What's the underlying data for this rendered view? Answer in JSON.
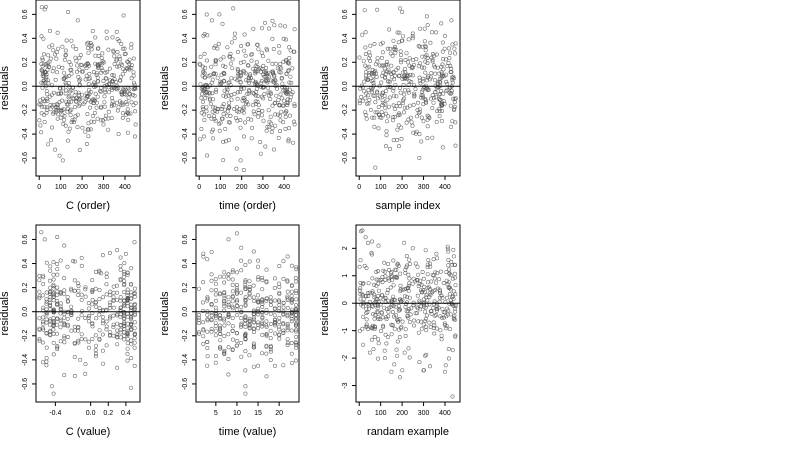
{
  "figure": {
    "layout": "2x3 grid of residual scatter plots",
    "marker": "open circle",
    "marker_color": "#555555",
    "reference_line": "horizontal at y = 0"
  },
  "chart_data": [
    {
      "id": "c-order",
      "type": "scatter",
      "xlabel": "C (order)",
      "ylabel": "residuals",
      "xlim": [
        -15,
        470
      ],
      "ylim": [
        -0.75,
        0.72
      ],
      "xticks": [
        0,
        100,
        200,
        300,
        400
      ],
      "xtick_labels": [
        "0",
        "100",
        "200",
        "300",
        "400"
      ],
      "yticks": [
        -0.6,
        -0.4,
        -0.2,
        0.0,
        0.2,
        0.4,
        0.6
      ],
      "ytick_labels": [
        "-0.6",
        "-0.4",
        "-0.2",
        "0.0",
        "0.2",
        "0.4",
        "0.6"
      ],
      "hline": 0,
      "points": [
        [
          12,
          0.66
        ],
        [
          40,
          0.05
        ],
        [
          65,
          0.3
        ],
        [
          80,
          -0.18
        ],
        [
          95,
          -0.58
        ],
        [
          110,
          -0.62
        ],
        [
          120,
          0.22
        ],
        [
          135,
          0.62
        ],
        [
          150,
          0.38
        ],
        [
          165,
          -0.28
        ],
        [
          180,
          0.55
        ],
        [
          200,
          0.12
        ],
        [
          215,
          -0.38
        ],
        [
          230,
          0.28
        ],
        [
          250,
          0.46
        ],
        [
          260,
          -0.12
        ],
        [
          275,
          0.18
        ],
        [
          300,
          -0.32
        ],
        [
          315,
          0.4
        ],
        [
          330,
          0.05
        ],
        [
          350,
          0.25
        ],
        [
          370,
          -0.4
        ],
        [
          390,
          0.1
        ],
        [
          410,
          -0.22
        ],
        [
          430,
          0.35
        ],
        [
          445,
          -0.08
        ],
        [
          25,
          -0.3
        ],
        [
          55,
          -0.45
        ],
        [
          170,
          -0.05
        ],
        [
          340,
          -0.15
        ]
      ],
      "scatter_cloud": {
        "count": 420,
        "x_range": [
          0,
          450
        ],
        "y_sd": 0.21,
        "seed": 11
      }
    },
    {
      "id": "time-order",
      "type": "scatter",
      "xlabel": "time (order)",
      "ylabel": "residuals",
      "xlim": [
        -15,
        470
      ],
      "ylim": [
        -0.75,
        0.72
      ],
      "xticks": [
        0,
        100,
        200,
        300,
        400
      ],
      "xtick_labels": [
        "0",
        "100",
        "200",
        "300",
        "400"
      ],
      "yticks": [
        -0.6,
        -0.4,
        -0.2,
        0.0,
        0.2,
        0.4,
        0.6
      ],
      "ytick_labels": [
        "-0.6",
        "-0.4",
        "-0.2",
        "0.0",
        "0.2",
        "0.4",
        "0.6"
      ],
      "hline": 0,
      "points": [
        [
          20,
          0.42
        ],
        [
          60,
          0.55
        ],
        [
          95,
          0.6
        ],
        [
          110,
          0.52
        ],
        [
          140,
          -0.45
        ],
        [
          160,
          0.65
        ],
        [
          195,
          -0.62
        ],
        [
          210,
          -0.7
        ],
        [
          230,
          0.35
        ],
        [
          255,
          0.48
        ],
        [
          280,
          -0.2
        ],
        [
          300,
          0.25
        ],
        [
          320,
          0.3
        ],
        [
          345,
          -0.35
        ],
        [
          370,
          0.15
        ],
        [
          395,
          -0.3
        ],
        [
          420,
          0.2
        ],
        [
          440,
          -0.05
        ],
        [
          70,
          -0.25
        ],
        [
          180,
          0.05
        ]
      ],
      "scatter_cloud": {
        "count": 420,
        "x_range": [
          0,
          450
        ],
        "y_sd": 0.21,
        "seed": 23
      }
    },
    {
      "id": "sample-index",
      "type": "scatter",
      "xlabel": "sample index",
      "ylabel": "residuals",
      "xlim": [
        -15,
        470
      ],
      "ylim": [
        -0.75,
        0.72
      ],
      "xticks": [
        0,
        100,
        200,
        300,
        400
      ],
      "xtick_labels": [
        "0",
        "100",
        "200",
        "300",
        "400"
      ],
      "yticks": [
        -0.6,
        -0.4,
        -0.2,
        0.0,
        0.2,
        0.4,
        0.6
      ],
      "ytick_labels": [
        "-0.6",
        "-0.4",
        "-0.2",
        "0.0",
        "0.2",
        "0.4",
        "0.6"
      ],
      "hline": 0,
      "points": [
        [
          30,
          0.45
        ],
        [
          75,
          -0.68
        ],
        [
          100,
          0.35
        ],
        [
          125,
          -0.5
        ],
        [
          160,
          0.38
        ],
        [
          190,
          0.65
        ],
        [
          200,
          0.62
        ],
        [
          250,
          0.4
        ],
        [
          280,
          -0.6
        ],
        [
          310,
          0.3
        ],
        [
          340,
          0.45
        ],
        [
          375,
          -0.25
        ],
        [
          400,
          0.42
        ],
        [
          430,
          0.55
        ],
        [
          450,
          -0.1
        ]
      ],
      "scatter_cloud": {
        "count": 420,
        "x_range": [
          0,
          450
        ],
        "y_sd": 0.21,
        "seed": 37
      }
    },
    {
      "id": "c-value",
      "type": "scatter",
      "xlabel": "C (value)",
      "ylabel": "residuals",
      "xlim": [
        -0.62,
        0.56
      ],
      "ylim": [
        -0.75,
        0.72
      ],
      "xticks": [
        -0.4,
        0.0,
        0.2,
        0.4
      ],
      "xtick_labels": [
        "-0.4",
        "0.0",
        "0.2",
        "0.4"
      ],
      "yticks": [
        -0.6,
        -0.4,
        -0.2,
        0.0,
        0.2,
        0.4,
        0.6
      ],
      "ytick_labels": [
        "-0.6",
        "-0.4",
        "-0.2",
        "0.0",
        "0.2",
        "0.4",
        "0.6"
      ],
      "hline": 0,
      "points": [
        [
          -0.56,
          0.66
        ],
        [
          -0.52,
          0.6
        ],
        [
          -0.44,
          -0.62
        ],
        [
          -0.42,
          -0.68
        ],
        [
          -0.38,
          0.62
        ],
        [
          -0.3,
          0.55
        ],
        [
          -0.2,
          0.42
        ],
        [
          -0.1,
          0.38
        ],
        [
          0.02,
          0.18
        ],
        [
          0.12,
          0.32
        ],
        [
          0.22,
          -0.2
        ],
        [
          0.34,
          0.45
        ],
        [
          0.4,
          0.48
        ],
        [
          0.46,
          0.36
        ],
        [
          0.5,
          -0.45
        ],
        [
          -0.12,
          -0.4
        ],
        [
          0.06,
          -0.35
        ]
      ],
      "scatter_cloud": {
        "count": 400,
        "x_levels": [
          -0.58,
          -0.54,
          -0.5,
          -0.46,
          -0.42,
          -0.38,
          -0.34,
          -0.3,
          -0.26,
          -0.22,
          -0.18,
          -0.14,
          -0.1,
          -0.06,
          -0.02,
          0.02,
          0.06,
          0.1,
          0.14,
          0.18,
          0.22,
          0.26,
          0.3,
          0.34,
          0.38,
          0.42,
          0.46,
          0.5
        ],
        "level_weights": [
          3,
          4,
          5,
          6,
          9,
          5,
          4,
          4,
          3,
          3,
          3,
          3,
          2,
          2,
          2,
          3,
          3,
          3,
          3,
          3,
          3,
          3,
          4,
          5,
          8,
          9,
          8,
          6
        ],
        "y_sd": 0.21,
        "seed": 53
      }
    },
    {
      "id": "time-value",
      "type": "scatter",
      "xlabel": "time (value)",
      "ylabel": "residuals",
      "xlim": [
        0.3,
        24.7
      ],
      "ylim": [
        -0.75,
        0.72
      ],
      "xticks": [
        5,
        10,
        15,
        20
      ],
      "xtick_labels": [
        "5",
        "10",
        "15",
        "20"
      ],
      "yticks": [
        -0.6,
        -0.4,
        -0.2,
        0.0,
        0.2,
        0.4,
        0.6
      ],
      "ytick_labels": [
        "-0.6",
        "-0.4",
        "-0.2",
        "0.0",
        "0.2",
        "0.4",
        "0.6"
      ],
      "hline": 0,
      "points": [
        [
          8,
          0.6
        ],
        [
          10,
          0.65
        ],
        [
          12,
          -0.62
        ],
        [
          12,
          -0.68
        ],
        [
          14,
          0.5
        ],
        [
          17,
          0.35
        ],
        [
          19,
          -0.45
        ],
        [
          21,
          0.42
        ],
        [
          23,
          -0.35
        ],
        [
          24,
          -0.3
        ],
        [
          3,
          0.12
        ]
      ],
      "scatter_cloud": {
        "count": 400,
        "x_levels": [
          1,
          2,
          3,
          4,
          5,
          6,
          7,
          8,
          9,
          10,
          11,
          12,
          13,
          14,
          15,
          16,
          17,
          18,
          19,
          20,
          21,
          22,
          23,
          24
        ],
        "level_weights": [
          2,
          3,
          4,
          4,
          5,
          5,
          6,
          5,
          5,
          5,
          4,
          9,
          5,
          6,
          5,
          5,
          5,
          4,
          4,
          5,
          4,
          5,
          6,
          8
        ],
        "y_sd": 0.21,
        "seed": 71
      }
    },
    {
      "id": "random-example",
      "type": "scatter",
      "xlabel": "randam example",
      "ylabel": "residuals",
      "xlim": [
        -15,
        470
      ],
      "ylim": [
        -3.6,
        2.85
      ],
      "xticks": [
        0,
        100,
        200,
        300,
        400
      ],
      "xtick_labels": [
        "0",
        "100",
        "200",
        "300",
        "400"
      ],
      "yticks": [
        -3,
        -2,
        -1,
        0,
        1,
        2
      ],
      "ytick_labels": [
        "-3",
        "-2",
        "-1",
        "0",
        "1",
        "2"
      ],
      "hline": 0,
      "points": [
        [
          15,
          2.65
        ],
        [
          30,
          2.4
        ],
        [
          60,
          2.25
        ],
        [
          90,
          2.1
        ],
        [
          120,
          -2.0
        ],
        [
          150,
          -2.5
        ],
        [
          190,
          -2.7
        ],
        [
          210,
          2.2
        ],
        [
          250,
          2.0
        ],
        [
          300,
          -2.45
        ],
        [
          330,
          -2.3
        ],
        [
          360,
          1.8
        ],
        [
          400,
          -2.5
        ],
        [
          435,
          -3.4
        ],
        [
          445,
          1.4
        ],
        [
          50,
          -1.8
        ]
      ],
      "scatter_cloud": {
        "count": 420,
        "x_range": [
          0,
          450
        ],
        "y_sd": 0.95,
        "seed": 97
      }
    }
  ]
}
